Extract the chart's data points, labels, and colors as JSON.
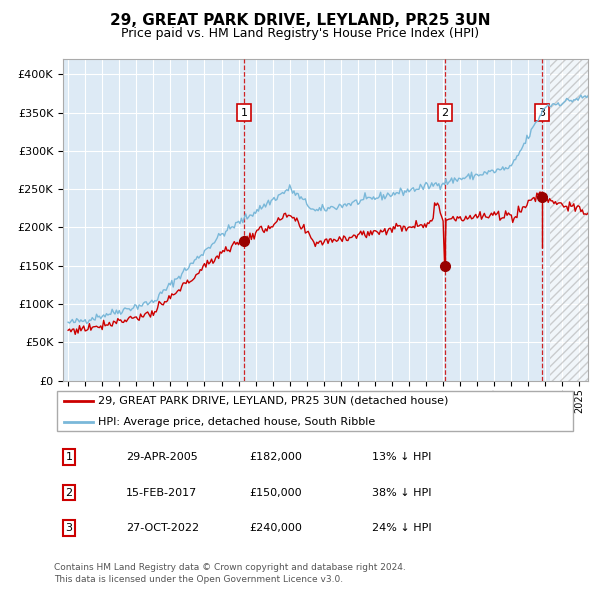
{
  "title": "29, GREAT PARK DRIVE, LEYLAND, PR25 3UN",
  "subtitle": "Price paid vs. HM Land Registry's House Price Index (HPI)",
  "legend_line1": "29, GREAT PARK DRIVE, LEYLAND, PR25 3UN (detached house)",
  "legend_line2": "HPI: Average price, detached house, South Ribble",
  "transactions": [
    {
      "num": 1,
      "date": "29-APR-2005",
      "price": 182000,
      "pct": "13%",
      "x_year": 2005.32
    },
    {
      "num": 2,
      "date": "15-FEB-2017",
      "price": 150000,
      "pct": "38%",
      "x_year": 2017.12
    },
    {
      "num": 3,
      "date": "27-OCT-2022",
      "price": 240000,
      "pct": "24%",
      "x_year": 2022.81
    }
  ],
  "footer_line1": "Contains HM Land Registry data © Crown copyright and database right 2024.",
  "footer_line2": "This data is licensed under the Open Government Licence v3.0.",
  "ylim": [
    0,
    420000
  ],
  "xlim_start": 1994.7,
  "xlim_end": 2025.5,
  "background_color": "#ddeaf5",
  "hpi_color": "#7ab8d9",
  "price_color": "#cc0000",
  "marker_color": "#990000",
  "vline_color": "#cc0000",
  "grid_color": "#ffffff"
}
